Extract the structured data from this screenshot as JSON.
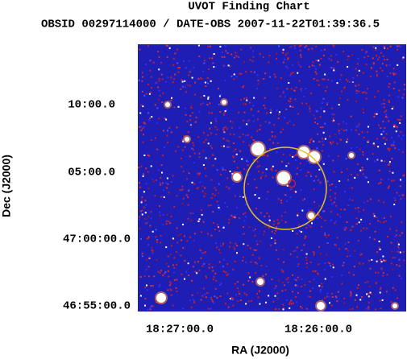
{
  "title": "UVOT Finding Chart",
  "subtitle": "OBSID 00297114000 / DATE-OBS 2007-11-22T01:39:36.5",
  "x_axis": {
    "label": "RA (J2000)",
    "ticks": [
      "18:27:00.0",
      "18:26:00.0"
    ]
  },
  "y_axis": {
    "label": "Dec (J2000)",
    "ticks": [
      "10:00.0",
      "05:00.0",
      "47:00:00.0",
      "46:55:00.0"
    ]
  }
}
